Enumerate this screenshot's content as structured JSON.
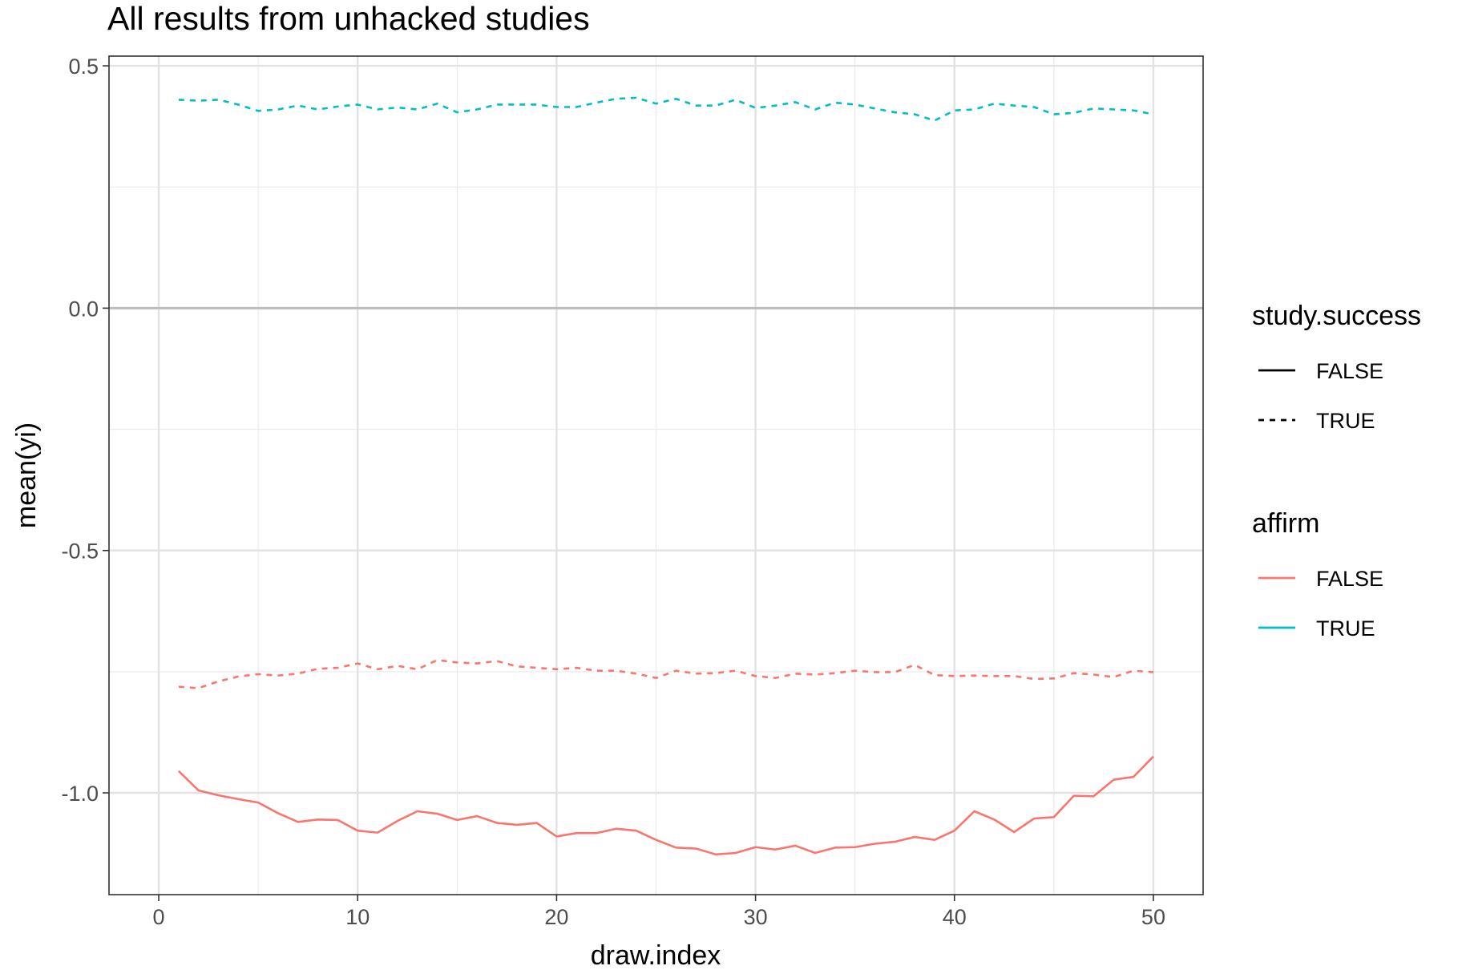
{
  "chart_data": {
    "type": "line",
    "title": "All results from unhacked studies",
    "xlabel": "draw.index",
    "ylabel": "mean(yi)",
    "xlim": [
      -2.5,
      52.5
    ],
    "ylim": [
      -1.21,
      0.52
    ],
    "x_ticks": [
      0,
      10,
      20,
      30,
      40,
      50
    ],
    "x_tick_labels": [
      "0",
      "10",
      "20",
      "30",
      "40",
      "50"
    ],
    "y_ticks": [
      0.5,
      0.0,
      -0.5,
      -1.0
    ],
    "y_tick_labels": [
      "0.5",
      "0.0",
      "-0.5",
      "-1.0"
    ],
    "grid": true,
    "reference_line_y": 0,
    "legend_position": "right",
    "legends": [
      {
        "title": "study.success",
        "entries": [
          {
            "label": "FALSE",
            "line_style": "solid",
            "color": "#000000"
          },
          {
            "label": "TRUE",
            "line_style": "dashed",
            "color": "#000000"
          }
        ]
      },
      {
        "title": "affirm",
        "entries": [
          {
            "label": "FALSE",
            "line_style": "solid",
            "color": "#F8766D"
          },
          {
            "label": "TRUE",
            "line_style": "solid",
            "color": "#00BFC4"
          }
        ]
      }
    ],
    "series": [
      {
        "affirm": "TRUE",
        "study_success": "TRUE",
        "color": "#00BFC4",
        "line_style": "dashed",
        "x": [
          1,
          2,
          3,
          4,
          5,
          6,
          7,
          8,
          9,
          10,
          11,
          12,
          13,
          14,
          15,
          16,
          17,
          18,
          19,
          20,
          21,
          22,
          23,
          24,
          25,
          26,
          27,
          28,
          29,
          30,
          31,
          32,
          33,
          34,
          35,
          36,
          37,
          38,
          39,
          40,
          41,
          42,
          43,
          44,
          45,
          46,
          47,
          48,
          49,
          50
        ],
        "values": [
          0.43,
          0.428,
          0.43,
          0.42,
          0.407,
          0.41,
          0.418,
          0.41,
          0.416,
          0.42,
          0.41,
          0.414,
          0.41,
          0.422,
          0.404,
          0.41,
          0.42,
          0.42,
          0.42,
          0.415,
          0.415,
          0.424,
          0.432,
          0.434,
          0.422,
          0.432,
          0.418,
          0.418,
          0.43,
          0.413,
          0.418,
          0.425,
          0.41,
          0.424,
          0.42,
          0.412,
          0.404,
          0.4,
          0.387,
          0.408,
          0.41,
          0.422,
          0.418,
          0.415,
          0.4,
          0.403,
          0.412,
          0.41,
          0.408,
          0.4
        ]
      },
      {
        "affirm": "FALSE",
        "study_success": "TRUE",
        "color": "#F8766D",
        "line_style": "dashed",
        "x": [
          1,
          2,
          3,
          4,
          5,
          6,
          7,
          8,
          9,
          10,
          11,
          12,
          13,
          14,
          15,
          16,
          17,
          18,
          19,
          20,
          21,
          22,
          23,
          24,
          25,
          26,
          27,
          28,
          29,
          30,
          31,
          32,
          33,
          34,
          35,
          36,
          37,
          38,
          39,
          40,
          41,
          42,
          43,
          44,
          45,
          46,
          47,
          48,
          49,
          50
        ],
        "values": [
          -0.781,
          -0.784,
          -0.77,
          -0.76,
          -0.755,
          -0.758,
          -0.754,
          -0.744,
          -0.742,
          -0.733,
          -0.745,
          -0.738,
          -0.745,
          -0.726,
          -0.731,
          -0.733,
          -0.728,
          -0.739,
          -0.742,
          -0.745,
          -0.742,
          -0.748,
          -0.748,
          -0.754,
          -0.763,
          -0.748,
          -0.754,
          -0.753,
          -0.748,
          -0.759,
          -0.763,
          -0.754,
          -0.756,
          -0.753,
          -0.748,
          -0.751,
          -0.751,
          -0.736,
          -0.757,
          -0.759,
          -0.758,
          -0.759,
          -0.759,
          -0.765,
          -0.764,
          -0.753,
          -0.756,
          -0.761,
          -0.748,
          -0.751
        ]
      },
      {
        "affirm": "FALSE",
        "study_success": "FALSE",
        "color": "#F8766D",
        "line_style": "solid",
        "x": [
          1,
          2,
          3,
          4,
          5,
          6,
          7,
          8,
          9,
          10,
          11,
          12,
          13,
          14,
          15,
          16,
          17,
          18,
          19,
          20,
          21,
          22,
          23,
          24,
          25,
          26,
          27,
          28,
          29,
          30,
          31,
          32,
          33,
          34,
          35,
          36,
          37,
          38,
          39,
          40,
          41,
          42,
          43,
          44,
          45,
          46,
          47,
          48,
          49,
          50
        ],
        "values": [
          -0.955,
          -0.995,
          -1.005,
          -1.013,
          -1.02,
          -1.042,
          -1.06,
          -1.055,
          -1.056,
          -1.078,
          -1.082,
          -1.058,
          -1.038,
          -1.043,
          -1.056,
          -1.048,
          -1.062,
          -1.066,
          -1.062,
          -1.09,
          -1.083,
          -1.083,
          -1.074,
          -1.078,
          -1.097,
          -1.113,
          -1.115,
          -1.127,
          -1.124,
          -1.112,
          -1.117,
          -1.109,
          -1.124,
          -1.113,
          -1.112,
          -1.105,
          -1.101,
          -1.091,
          -1.097,
          -1.078,
          -1.038,
          -1.055,
          -1.081,
          -1.053,
          -1.05,
          -1.006,
          -1.007,
          -0.973,
          -0.967,
          -0.925
        ]
      }
    ]
  }
}
